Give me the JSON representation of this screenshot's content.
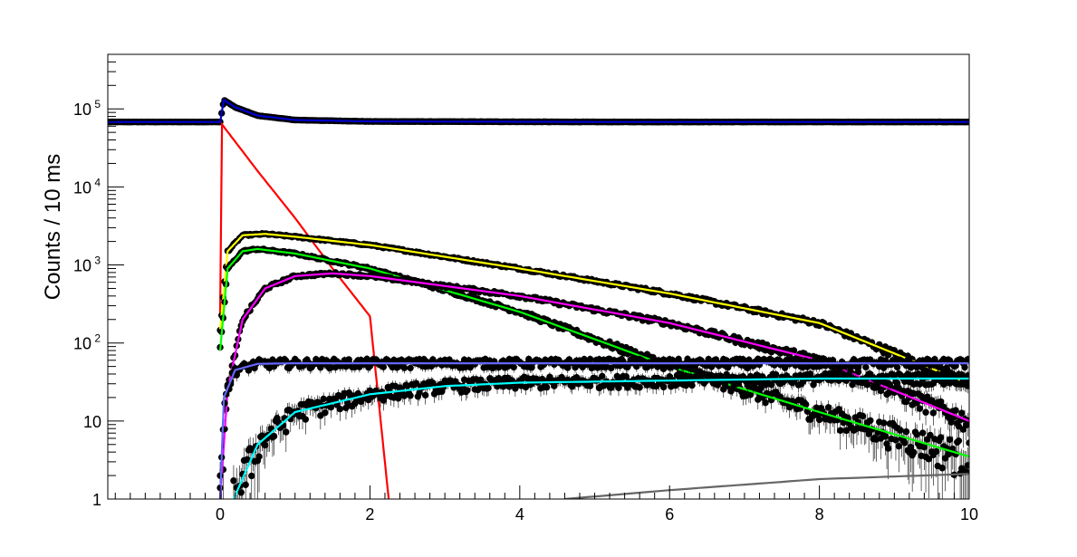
{
  "chart_data": {
    "type": "scatter",
    "title": "",
    "xlabel": "",
    "ylabel": "Counts / 10 ms",
    "xlim": [
      -1.5,
      10
    ],
    "ylim": [
      1,
      500000
    ],
    "y_scale": "log",
    "grid": false,
    "legend": "none",
    "x_ticks": [
      {
        "value": 0,
        "label": "0"
      },
      {
        "value": 2,
        "label": "2"
      },
      {
        "value": 4,
        "label": "4"
      },
      {
        "value": 6,
        "label": "6"
      },
      {
        "value": 8,
        "label": "8"
      },
      {
        "value": 10,
        "label": "10"
      }
    ],
    "y_ticks": [
      {
        "value": 1,
        "label": "1"
      },
      {
        "value": 10,
        "label": "10"
      },
      {
        "value": 100,
        "label": "10",
        "exp": "2"
      },
      {
        "value": 1000,
        "label": "10",
        "exp": "3"
      },
      {
        "value": 10000,
        "label": "10",
        "exp": "4"
      },
      {
        "value": 100000,
        "label": "10",
        "exp": "5"
      }
    ],
    "series": [
      {
        "color": "#0000cc",
        "style": "line+markers",
        "x": [
          -1.5,
          0,
          0.05,
          0.2,
          0.5,
          1,
          2,
          5,
          10
        ],
        "y": [
          68000,
          68000,
          130000,
          105000,
          82000,
          72000,
          69000,
          68000,
          68000
        ]
      },
      {
        "color": "#ff0000",
        "style": "line",
        "x": [
          0,
          0,
          0.5,
          1,
          1.5,
          2,
          2.25
        ],
        "y": [
          220,
          68000,
          16000,
          4000,
          900,
          220,
          1
        ]
      },
      {
        "color": "#ffff00",
        "style": "line+markers",
        "x": [
          0,
          0.1,
          0.3,
          0.6,
          1,
          2,
          4,
          6,
          8,
          10
        ],
        "y": [
          150,
          1500,
          2400,
          2500,
          2300,
          1800,
          900,
          430,
          180,
          30
        ]
      },
      {
        "color": "#00ff00",
        "style": "line+markers",
        "x": [
          0,
          0.1,
          0.3,
          0.5,
          1,
          2,
          4,
          6,
          8,
          10
        ],
        "y": [
          80,
          900,
          1500,
          1600,
          1400,
          900,
          250,
          50,
          13,
          3.5
        ]
      },
      {
        "color": "#ff00ff",
        "style": "line+markers",
        "x": [
          0,
          0.1,
          0.3,
          0.6,
          1,
          1.5,
          2,
          4,
          6,
          8,
          10
        ],
        "y": [
          1,
          25,
          200,
          500,
          720,
          780,
          720,
          400,
          180,
          60,
          10
        ]
      },
      {
        "color": "#6666ff",
        "style": "line+markers",
        "x": [
          0,
          0.05,
          0.2,
          0.5,
          1,
          10
        ],
        "y": [
          1,
          20,
          45,
          54,
          55,
          55
        ]
      },
      {
        "color": "#00ffff",
        "style": "line+markers",
        "x": [
          0.18,
          0.5,
          1,
          2,
          3,
          4,
          6,
          8,
          10
        ],
        "y": [
          1,
          5,
          13,
          22,
          28,
          31,
          33,
          35,
          35
        ]
      },
      {
        "color": "#666666",
        "style": "line",
        "x": [
          4.6,
          6,
          8,
          10
        ],
        "y": [
          1,
          1.3,
          1.8,
          2.1
        ]
      }
    ]
  }
}
